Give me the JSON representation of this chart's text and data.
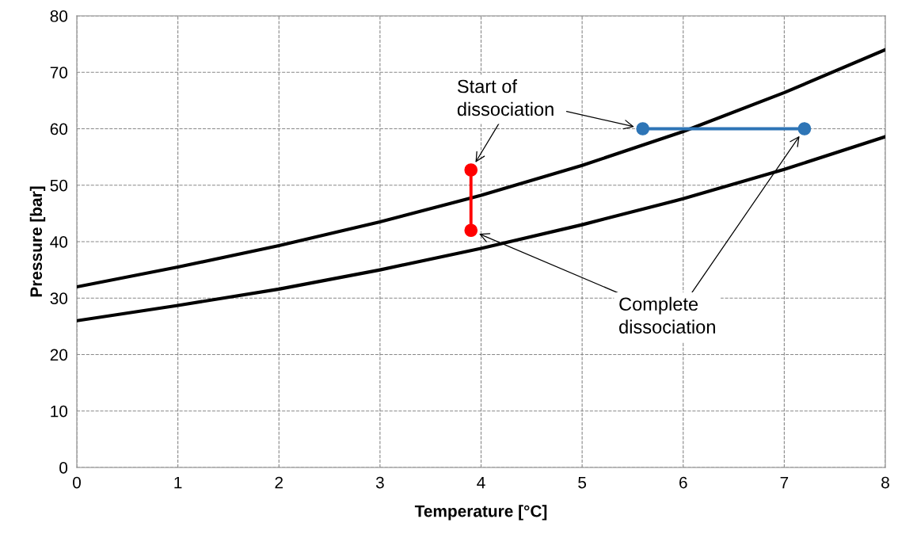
{
  "chart_data": {
    "type": "line",
    "xlabel": "Temperature [°C]",
    "ylabel": "Pressure [bar]",
    "x": [
      0,
      1,
      2,
      3,
      4,
      5,
      6,
      7,
      8
    ],
    "series": [
      {
        "color": "#000000",
        "values": [
          32,
          35.5,
          39.3,
          43.5,
          48.2,
          53.5,
          59.5,
          66.4,
          74
        ],
        "marker": "none"
      },
      {
        "color": "#000000",
        "values": [
          26,
          28.7,
          31.6,
          35,
          38.8,
          43,
          47.6,
          52.8,
          58.6
        ],
        "marker": "none"
      },
      {
        "color": "#ff0000",
        "x": [
          3.9,
          3.9
        ],
        "values": [
          52.7,
          42
        ],
        "marker": "circle"
      },
      {
        "color": "#2e75b6",
        "x": [
          5.6,
          7.2
        ],
        "values": [
          60,
          60
        ],
        "marker": "circle"
      }
    ],
    "annotations": [
      "Start of\ndissociation",
      "Complete\ndissociation"
    ],
    "xlim": [
      0,
      8
    ],
    "xticks": [
      0,
      1,
      2,
      3,
      4,
      5,
      6,
      7,
      8
    ],
    "ylim": [
      0,
      80
    ],
    "yticks": [
      0,
      10,
      20,
      30,
      40,
      50,
      60,
      70,
      80
    ],
    "grid": true,
    "legend": false
  }
}
